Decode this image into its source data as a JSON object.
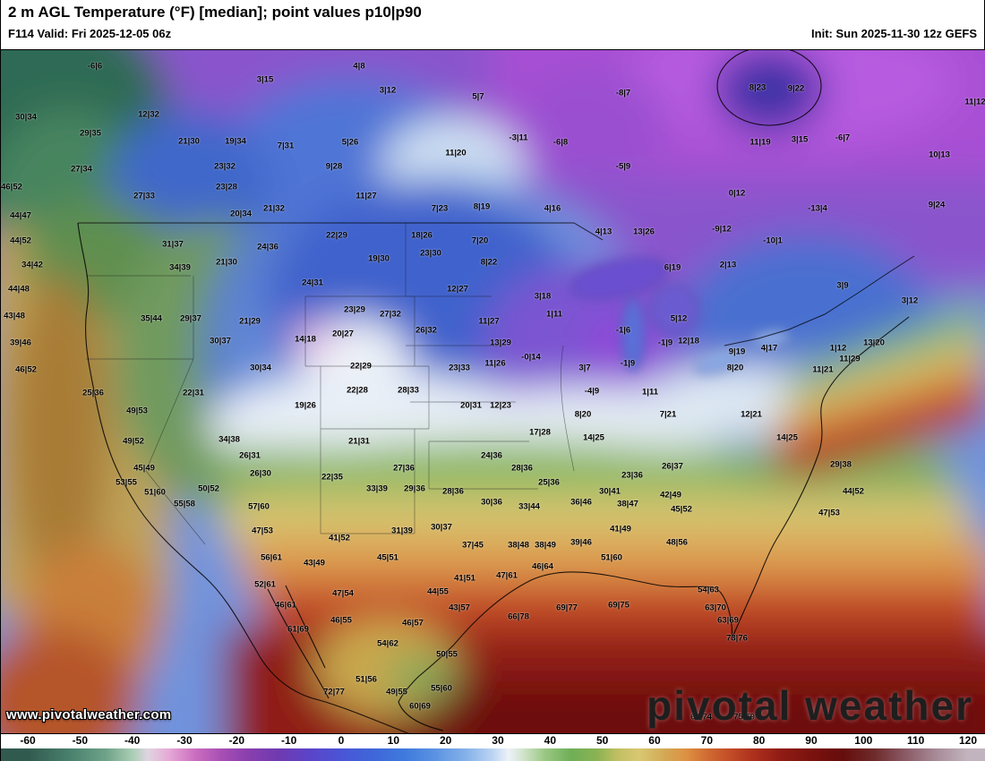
{
  "header": {
    "title": "2 m AGL Temperature (°F) [median]; point values p10|p90",
    "valid": "F114 Valid: Fri 2025-12-05 06z",
    "init": "Init: Sun 2025-11-30 12z GEFS"
  },
  "watermark": "www.pivotalweather.com",
  "logo": "pivotal weather",
  "colorbar": {
    "ticks": [
      "-60",
      "-50",
      "-40",
      "-30",
      "-20",
      "-10",
      "0",
      "10",
      "20",
      "30",
      "40",
      "50",
      "60",
      "70",
      "80",
      "90",
      "100",
      "110",
      "120"
    ],
    "stops": [
      [
        -60,
        "#315a4e"
      ],
      [
        -52,
        "#49806d"
      ],
      [
        -45,
        "#6fa289"
      ],
      [
        -40,
        "#a9cdb4"
      ],
      [
        -37,
        "#dfd5e2"
      ],
      [
        -33,
        "#e6a9d6"
      ],
      [
        -28,
        "#cb6ec0"
      ],
      [
        -23,
        "#a84fb4"
      ],
      [
        -18,
        "#8a3fae"
      ],
      [
        -12,
        "#6f3ab0"
      ],
      [
        -6,
        "#5b44c9"
      ],
      [
        0,
        "#4a55d6"
      ],
      [
        6,
        "#3f66d9"
      ],
      [
        12,
        "#3f79dd"
      ],
      [
        18,
        "#5b93e2"
      ],
      [
        24,
        "#86b2ea"
      ],
      [
        29,
        "#bcd4f2"
      ],
      [
        32,
        "#edf2f8"
      ],
      [
        35,
        "#cfe3c8"
      ],
      [
        39,
        "#9ac883"
      ],
      [
        44,
        "#6fae57"
      ],
      [
        49,
        "#8ab353"
      ],
      [
        53,
        "#c2bf63"
      ],
      [
        57,
        "#d9c873"
      ],
      [
        62,
        "#d3a855"
      ],
      [
        66,
        "#dd9142"
      ],
      [
        70,
        "#d06c33"
      ],
      [
        74,
        "#c44f28"
      ],
      [
        79,
        "#ad2f1d"
      ],
      [
        84,
        "#911c15"
      ],
      [
        90,
        "#7a120f"
      ],
      [
        96,
        "#660d0c"
      ],
      [
        102,
        "#6e2a2a"
      ],
      [
        108,
        "#8a5a66"
      ],
      [
        114,
        "#a88b98"
      ],
      [
        120,
        "#c2b4be"
      ]
    ]
  },
  "points": [
    [
      105,
      73,
      "-6|6"
    ],
    [
      295,
      88,
      "3|15"
    ],
    [
      400,
      73,
      "4|8"
    ],
    [
      28,
      130,
      "30|34"
    ],
    [
      165,
      127,
      "12|32"
    ],
    [
      432,
      100,
      "3|12"
    ],
    [
      533,
      107,
      "5|7"
    ],
    [
      695,
      103,
      "-8|7"
    ],
    [
      845,
      97,
      "8|23"
    ],
    [
      888,
      98,
      "9|22"
    ],
    [
      1088,
      113,
      "11|12"
    ],
    [
      100,
      148,
      "29|35"
    ],
    [
      210,
      157,
      "21|30"
    ],
    [
      262,
      157,
      "19|34"
    ],
    [
      318,
      162,
      "7|31"
    ],
    [
      390,
      158,
      "5|26"
    ],
    [
      508,
      170,
      "11|20"
    ],
    [
      578,
      153,
      "-3|11"
    ],
    [
      625,
      158,
      "-6|8"
    ],
    [
      848,
      158,
      "11|19"
    ],
    [
      892,
      155,
      "3|15"
    ],
    [
      940,
      153,
      "-6|7"
    ],
    [
      1048,
      172,
      "10|13"
    ],
    [
      90,
      188,
      "27|34"
    ],
    [
      250,
      185,
      "23|32"
    ],
    [
      372,
      185,
      "9|28"
    ],
    [
      695,
      185,
      "-5|9"
    ],
    [
      12,
      208,
      "46|52"
    ],
    [
      160,
      218,
      "27|33"
    ],
    [
      252,
      208,
      "23|28"
    ],
    [
      822,
      215,
      "0|12"
    ],
    [
      1045,
      228,
      "9|24"
    ],
    [
      268,
      238,
      "20|34"
    ],
    [
      305,
      232,
      "21|32"
    ],
    [
      408,
      218,
      "11|27"
    ],
    [
      490,
      232,
      "7|23"
    ],
    [
      537,
      230,
      "8|19"
    ],
    [
      616,
      232,
      "4|16"
    ],
    [
      912,
      232,
      "-13|4"
    ],
    [
      718,
      258,
      "13|26"
    ],
    [
      805,
      255,
      "-9|12"
    ],
    [
      862,
      268,
      "-10|1"
    ],
    [
      22,
      240,
      "44|47"
    ],
    [
      375,
      262,
      "22|29"
    ],
    [
      470,
      262,
      "18|26"
    ],
    [
      673,
      258,
      "4|13"
    ],
    [
      22,
      268,
      "44|52"
    ],
    [
      192,
      272,
      "31|37"
    ],
    [
      298,
      275,
      "24|36"
    ],
    [
      535,
      268,
      "7|20"
    ],
    [
      35,
      295,
      "34|42"
    ],
    [
      200,
      298,
      "34|39"
    ],
    [
      252,
      292,
      "21|30"
    ],
    [
      422,
      288,
      "19|30"
    ],
    [
      480,
      282,
      "23|30"
    ],
    [
      545,
      292,
      "8|22"
    ],
    [
      750,
      298,
      "6|19"
    ],
    [
      812,
      295,
      "2|13"
    ],
    [
      940,
      318,
      "3|9"
    ],
    [
      1015,
      335,
      "3|12"
    ],
    [
      20,
      322,
      "44|48"
    ],
    [
      348,
      315,
      "24|31"
    ],
    [
      510,
      322,
      "12|27"
    ],
    [
      605,
      330,
      "3|18"
    ],
    [
      618,
      350,
      "1|11"
    ],
    [
      757,
      355,
      "5|12"
    ],
    [
      15,
      352,
      "43|48"
    ],
    [
      168,
      355,
      "35|44"
    ],
    [
      212,
      355,
      "29|37"
    ],
    [
      278,
      358,
      "21|29"
    ],
    [
      395,
      345,
      "23|29"
    ],
    [
      435,
      350,
      "27|32"
    ],
    [
      545,
      358,
      "11|27"
    ],
    [
      695,
      368,
      "-1|6"
    ],
    [
      340,
      378,
      "14|18"
    ],
    [
      382,
      372,
      "20|27"
    ],
    [
      475,
      368,
      "26|32"
    ],
    [
      558,
      382,
      "13|29"
    ],
    [
      742,
      382,
      "-1|9"
    ],
    [
      22,
      382,
      "39|46"
    ],
    [
      245,
      380,
      "30|37"
    ],
    [
      768,
      380,
      "12|18"
    ],
    [
      858,
      388,
      "4|17"
    ],
    [
      822,
      392,
      "9|19"
    ],
    [
      935,
      388,
      "1|12"
    ],
    [
      975,
      382,
      "13|20"
    ],
    [
      948,
      400,
      "11|29"
    ],
    [
      592,
      398,
      "-0|14"
    ],
    [
      290,
      410,
      "30|34"
    ],
    [
      402,
      408,
      "22|29"
    ],
    [
      512,
      410,
      "23|33"
    ],
    [
      552,
      405,
      "11|26"
    ],
    [
      652,
      410,
      "3|7"
    ],
    [
      700,
      405,
      "-1|9"
    ],
    [
      820,
      410,
      "8|20"
    ],
    [
      918,
      412,
      "11|21"
    ],
    [
      28,
      412,
      "46|52"
    ],
    [
      103,
      438,
      "25|36"
    ],
    [
      215,
      438,
      "22|31"
    ],
    [
      340,
      452,
      "19|26"
    ],
    [
      398,
      435,
      "22|28"
    ],
    [
      455,
      435,
      "28|33"
    ],
    [
      525,
      452,
      "20|31"
    ],
    [
      558,
      452,
      "12|23"
    ],
    [
      660,
      436,
      "-4|9"
    ],
    [
      725,
      437,
      "1|11"
    ],
    [
      650,
      462,
      "8|20"
    ],
    [
      745,
      462,
      "7|21"
    ],
    [
      838,
      462,
      "12|21"
    ],
    [
      878,
      488,
      "14|25"
    ],
    [
      152,
      458,
      "49|53"
    ],
    [
      148,
      492,
      "49|52"
    ],
    [
      255,
      490,
      "34|38"
    ],
    [
      278,
      508,
      "26|31"
    ],
    [
      400,
      492,
      "21|31"
    ],
    [
      602,
      482,
      "17|28"
    ],
    [
      662,
      488,
      "14|25"
    ],
    [
      938,
      518,
      "29|38"
    ],
    [
      160,
      522,
      "45|49"
    ],
    [
      140,
      538,
      "53|55"
    ],
    [
      290,
      528,
      "26|30"
    ],
    [
      370,
      532,
      "22|35"
    ],
    [
      450,
      522,
      "27|36"
    ],
    [
      548,
      508,
      "24|36"
    ],
    [
      582,
      522,
      "28|36"
    ],
    [
      612,
      538,
      "25|36"
    ],
    [
      750,
      520,
      "26|37"
    ],
    [
      680,
      548,
      "30|41"
    ],
    [
      705,
      530,
      "23|36"
    ],
    [
      952,
      548,
      "44|52"
    ],
    [
      925,
      572,
      "47|53"
    ],
    [
      172,
      549,
      "51|60"
    ],
    [
      232,
      545,
      "50|52"
    ],
    [
      205,
      562,
      "55|58"
    ],
    [
      288,
      565,
      "57|60"
    ],
    [
      420,
      545,
      "33|39"
    ],
    [
      462,
      545,
      "29|36"
    ],
    [
      505,
      548,
      "28|36"
    ],
    [
      548,
      560,
      "30|36"
    ],
    [
      590,
      565,
      "33|44"
    ],
    [
      648,
      560,
      "36|46"
    ],
    [
      700,
      562,
      "38|47"
    ],
    [
      748,
      552,
      "42|49"
    ],
    [
      760,
      568,
      "45|52"
    ],
    [
      292,
      592,
      "47|53"
    ],
    [
      378,
      600,
      "41|52"
    ],
    [
      448,
      592,
      "31|39"
    ],
    [
      492,
      588,
      "30|37"
    ],
    [
      527,
      608,
      "37|45"
    ],
    [
      578,
      608,
      "38|48"
    ],
    [
      608,
      608,
      "38|49"
    ],
    [
      648,
      605,
      "39|46"
    ],
    [
      692,
      590,
      "41|49"
    ],
    [
      755,
      605,
      "48|56"
    ],
    [
      302,
      622,
      "56|61"
    ],
    [
      350,
      628,
      "43|49"
    ],
    [
      432,
      622,
      "45|51"
    ],
    [
      518,
      645,
      "41|51"
    ],
    [
      682,
      622,
      "51|60"
    ],
    [
      565,
      642,
      "47|61"
    ],
    [
      605,
      632,
      "46|64"
    ],
    [
      790,
      658,
      "54|63"
    ],
    [
      798,
      678,
      "63|70"
    ],
    [
      812,
      692,
      "63|69"
    ],
    [
      822,
      712,
      "73|76"
    ],
    [
      295,
      652,
      "52|61"
    ],
    [
      318,
      675,
      "46|61"
    ],
    [
      382,
      662,
      "47|54"
    ],
    [
      488,
      660,
      "44|55"
    ],
    [
      512,
      678,
      "43|57"
    ],
    [
      578,
      688,
      "66|78"
    ],
    [
      632,
      678,
      "69|77"
    ],
    [
      690,
      675,
      "69|75"
    ],
    [
      380,
      692,
      "46|55"
    ],
    [
      460,
      695,
      "46|57"
    ],
    [
      332,
      702,
      "61|69"
    ],
    [
      432,
      718,
      "54|62"
    ],
    [
      498,
      730,
      "50|55"
    ],
    [
      408,
      758,
      "51|56"
    ],
    [
      442,
      772,
      "49|55"
    ],
    [
      372,
      772,
      "72|77"
    ],
    [
      492,
      768,
      "55|60"
    ],
    [
      468,
      788,
      "60|69"
    ],
    [
      782,
      800,
      "67|74"
    ],
    [
      830,
      800,
      "75|79"
    ]
  ]
}
